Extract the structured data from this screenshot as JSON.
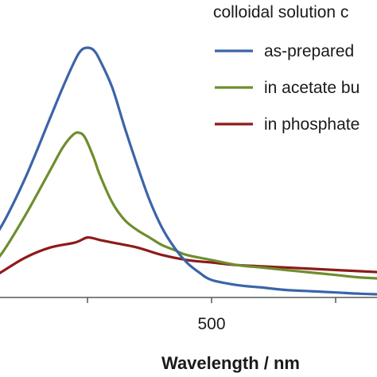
{
  "chart_data": {
    "type": "line",
    "xlabel": "Wavelength / nm",
    "ylabel": "",
    "xlim": [
      310,
      660
    ],
    "ylim": [
      0,
      1
    ],
    "x_ticks": [
      400,
      500,
      600
    ],
    "x_tick_labels": [
      "",
      "500",
      ""
    ],
    "grid": false,
    "legend": {
      "title": "colloidal solution c",
      "placement": "top-right",
      "entries": [
        "as-prepared",
        "in acetate bu",
        "in phosphate"
      ]
    },
    "colors": {
      "as_prepared": "#3c64a8",
      "acetate": "#6e8e2e",
      "phosphate": "#8e1a1a",
      "axis": "#595959"
    },
    "series": [
      {
        "name": "as-prepared",
        "x": [
          310,
          330,
          350,
          370,
          380,
          390,
          395,
          400,
          405,
          410,
          420,
          430,
          440,
          450,
          460,
          470,
          480,
          490,
          500,
          520,
          540,
          560,
          580,
          600,
          620,
          640,
          660
        ],
        "values": [
          0.14,
          0.28,
          0.48,
          0.72,
          0.84,
          0.95,
          0.99,
          1.0,
          0.99,
          0.95,
          0.84,
          0.68,
          0.53,
          0.39,
          0.28,
          0.2,
          0.14,
          0.1,
          0.07,
          0.05,
          0.04,
          0.03,
          0.025,
          0.02,
          0.015,
          0.012,
          0.01
        ]
      },
      {
        "name": "in acetate bu",
        "x": [
          310,
          330,
          350,
          370,
          380,
          388,
          393,
          398,
          405,
          410,
          420,
          430,
          440,
          450,
          460,
          470,
          480,
          500,
          520,
          540,
          560,
          580,
          600,
          620,
          640,
          660
        ],
        "values": [
          0.06,
          0.17,
          0.33,
          0.51,
          0.6,
          0.65,
          0.66,
          0.64,
          0.56,
          0.49,
          0.38,
          0.31,
          0.27,
          0.24,
          0.21,
          0.19,
          0.17,
          0.15,
          0.13,
          0.12,
          0.11,
          0.1,
          0.09,
          0.08,
          0.075,
          0.07
        ]
      },
      {
        "name": "in phosphate",
        "x": [
          310,
          330,
          350,
          370,
          390,
          400,
          410,
          420,
          440,
          460,
          480,
          500,
          520,
          540,
          560,
          580,
          600,
          620,
          640,
          660
        ],
        "values": [
          0.04,
          0.1,
          0.16,
          0.2,
          0.22,
          0.24,
          0.23,
          0.22,
          0.2,
          0.17,
          0.15,
          0.14,
          0.13,
          0.125,
          0.12,
          0.115,
          0.11,
          0.105,
          0.1,
          0.095
        ]
      }
    ]
  }
}
